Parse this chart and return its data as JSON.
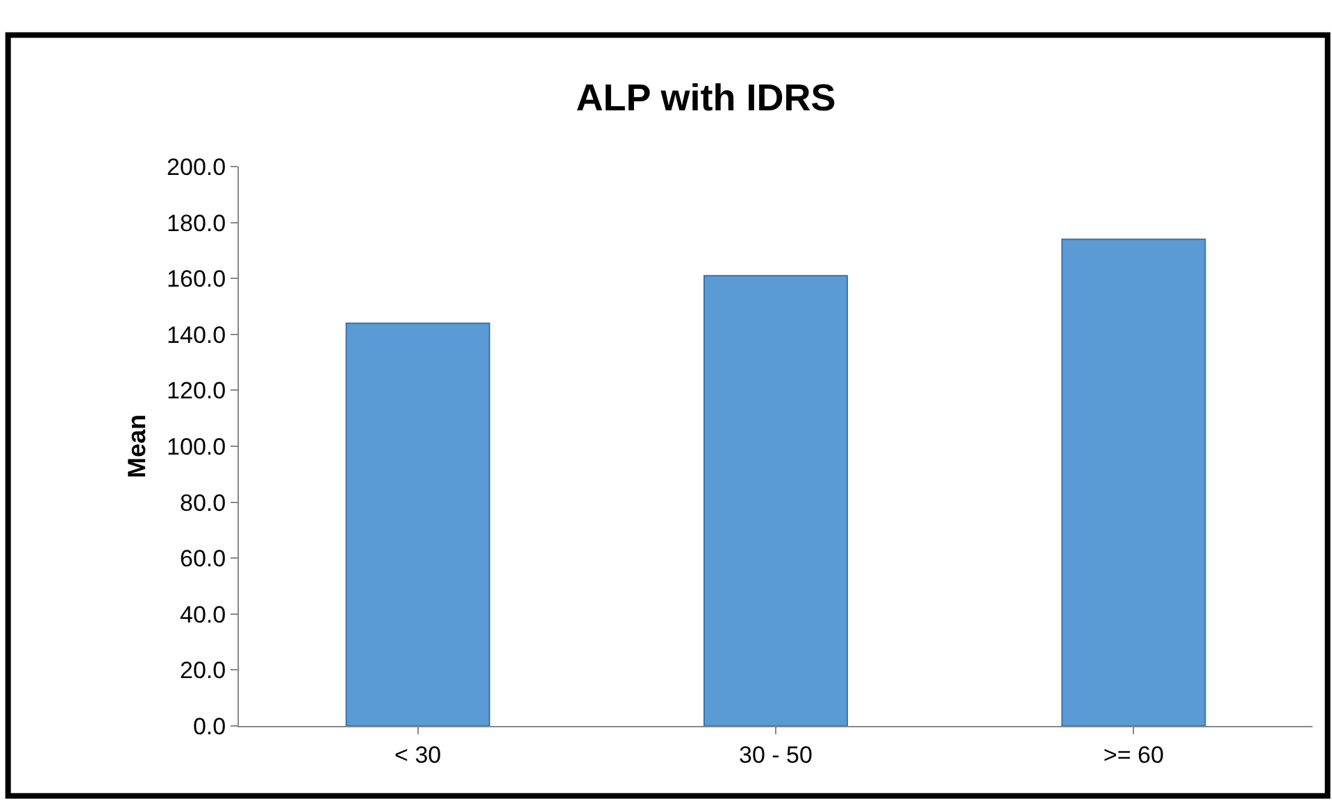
{
  "chart_data": {
    "type": "bar",
    "title": "ALP with IDRS",
    "ylabel": "Mean",
    "categories": [
      "< 30",
      "30 - 50",
      ">= 60"
    ],
    "values": [
      144,
      161,
      174
    ],
    "color": "#5b9bd5",
    "ylim": [
      0,
      200
    ],
    "yticks": [
      {
        "value": 0,
        "label": "0.0"
      },
      {
        "value": 20,
        "label": "20.0"
      },
      {
        "value": 40,
        "label": "40.0"
      },
      {
        "value": 60,
        "label": "60.0"
      },
      {
        "value": 80,
        "label": "80.0"
      },
      {
        "value": 100,
        "label": "100.0"
      },
      {
        "value": 120,
        "label": "120.0"
      },
      {
        "value": 140,
        "label": "140.0"
      },
      {
        "value": 160,
        "label": "160.0"
      },
      {
        "value": 180,
        "label": "180.0"
      },
      {
        "value": 200,
        "label": "200.0"
      }
    ]
  }
}
